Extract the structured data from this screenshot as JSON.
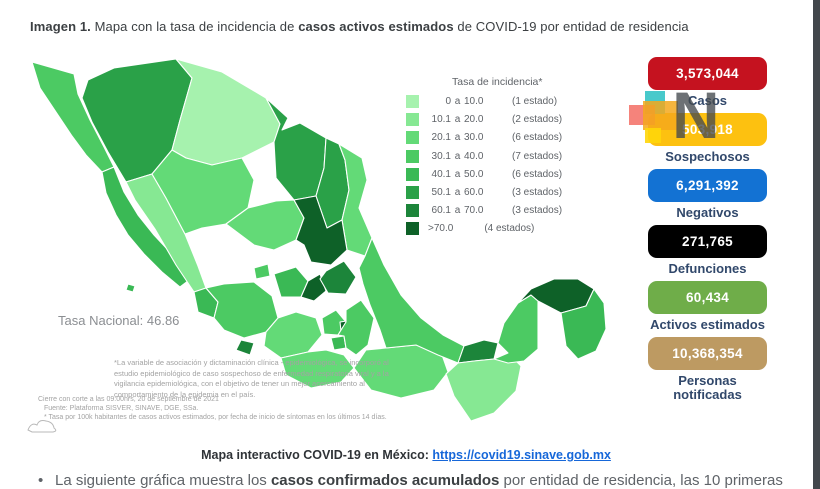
{
  "title": {
    "bold1": "Imagen 1.",
    "normal1": " Mapa con la tasa de incidencia de ",
    "bold2": "casos activos estimados",
    "normal2": " de COVID-19 por entidad de residencia"
  },
  "map": {
    "national_rate_label": "Tasa Nacional: 46.86",
    "palette": [
      "#a6f2ae",
      "#86e893",
      "#63da77",
      "#4cca63",
      "#3ab955",
      "#2aa148",
      "#1c853a",
      "#0e6128"
    ],
    "legend": {
      "title": "Tasa de incidencia*",
      "rows": [
        {
          "lo": "0",
          "hi": "10.0",
          "count": "(1 estado)"
        },
        {
          "lo": "10.1",
          "hi": "20.0",
          "count": "(2 estados)"
        },
        {
          "lo": "20.1",
          "hi": "30.0",
          "count": "(6 estados)"
        },
        {
          "lo": "30.1",
          "hi": "40.0",
          "count": "(7 estados)"
        },
        {
          "lo": "40.1",
          "hi": "50.0",
          "count": "(6 estados)"
        },
        {
          "lo": "50.1",
          "hi": "60.0",
          "count": "(3 estados)"
        },
        {
          "lo": "60.1",
          "hi": "70.0",
          "count": "(3 estados)"
        },
        {
          "lo": ">70.0",
          "hi": "",
          "count": "(4 estados)"
        }
      ]
    },
    "footnote_main": "*La variable de asociación y dictaminación clínica - epidemiológica, se incorporó al estudio epidemiológico de caso sospechoso de enfermedad respiratoria viral y a la vigilancia epidemiológica, con el objetivo de tener un mejor acercamiento al comportamiento de la epidemia en el país.",
    "footnotes": [
      "Cierre con corte a las 09:00hrs, 20 de septiembre de 2021",
      "Fuente: Plataforma SISVER, SINAVE, DGE, SSa.",
      "* Tasa por 100k habitantes de casos activos estimados, por fecha de inicio de síntomas en los últimos 14 días."
    ]
  },
  "stats": [
    {
      "value": "3,573,044",
      "label": "Casos",
      "color": "#c5121f"
    },
    {
      "value": "503,918",
      "label": "Sospechosos",
      "color": "#fdc110"
    },
    {
      "value": "6,291,392",
      "label": "Negativos",
      "color": "#1372d3"
    },
    {
      "value": "271,765",
      "label": "Defunciones",
      "color": "#000000"
    },
    {
      "value": "60,434",
      "label": "Activos estimados",
      "color": "#6fad49"
    },
    {
      "value": "10,368,354",
      "label": "Personas notificadas",
      "color": "#bd9a62"
    }
  ],
  "watermark": {
    "letter": "N",
    "teal": "rgba(62,198,200,0.95)",
    "salmon": "rgba(242,100,90,0.8)",
    "orange": "rgba(245,168,28,0.85)",
    "yellow": "rgba(255,214,10,0.9)"
  },
  "link_line": {
    "label": "Mapa interactivo COVID-19 en México: ",
    "url": "https://covid19.sinave.gob.mx"
  },
  "bullet_line": {
    "bullet": "•",
    "normal1": "La siguiente gráfica muestra los ",
    "bold": "casos confirmados acumulados",
    "normal2": " por entidad de residencia, las 10 primeras"
  },
  "chart_data": {
    "type": "choropleth",
    "title": "Mapa con la tasa de incidencia de casos activos estimados de COVID-19 por entidad de residencia",
    "legend_title": "Tasa de incidencia*",
    "national_rate": 46.86,
    "bins": [
      {
        "range": "0 a 10.0",
        "states": 1
      },
      {
        "range": "10.1 a 20.0",
        "states": 2
      },
      {
        "range": "20.1 a 30.0",
        "states": 6
      },
      {
        "range": "30.1 a 40.0",
        "states": 7
      },
      {
        "range": "40.1 a 50.0",
        "states": 6
      },
      {
        "range": "50.1 a 60.0",
        "states": 3
      },
      {
        "range": "60.1 a 70.0",
        "states": 3
      },
      {
        "range": ">70.0",
        "states": 4
      }
    ],
    "totals": {
      "casos": 3573044,
      "sospechosos": 503918,
      "negativos": 6291392,
      "defunciones": 271765,
      "activos_estimados": 60434,
      "personas_notificadas": 10368354
    }
  }
}
